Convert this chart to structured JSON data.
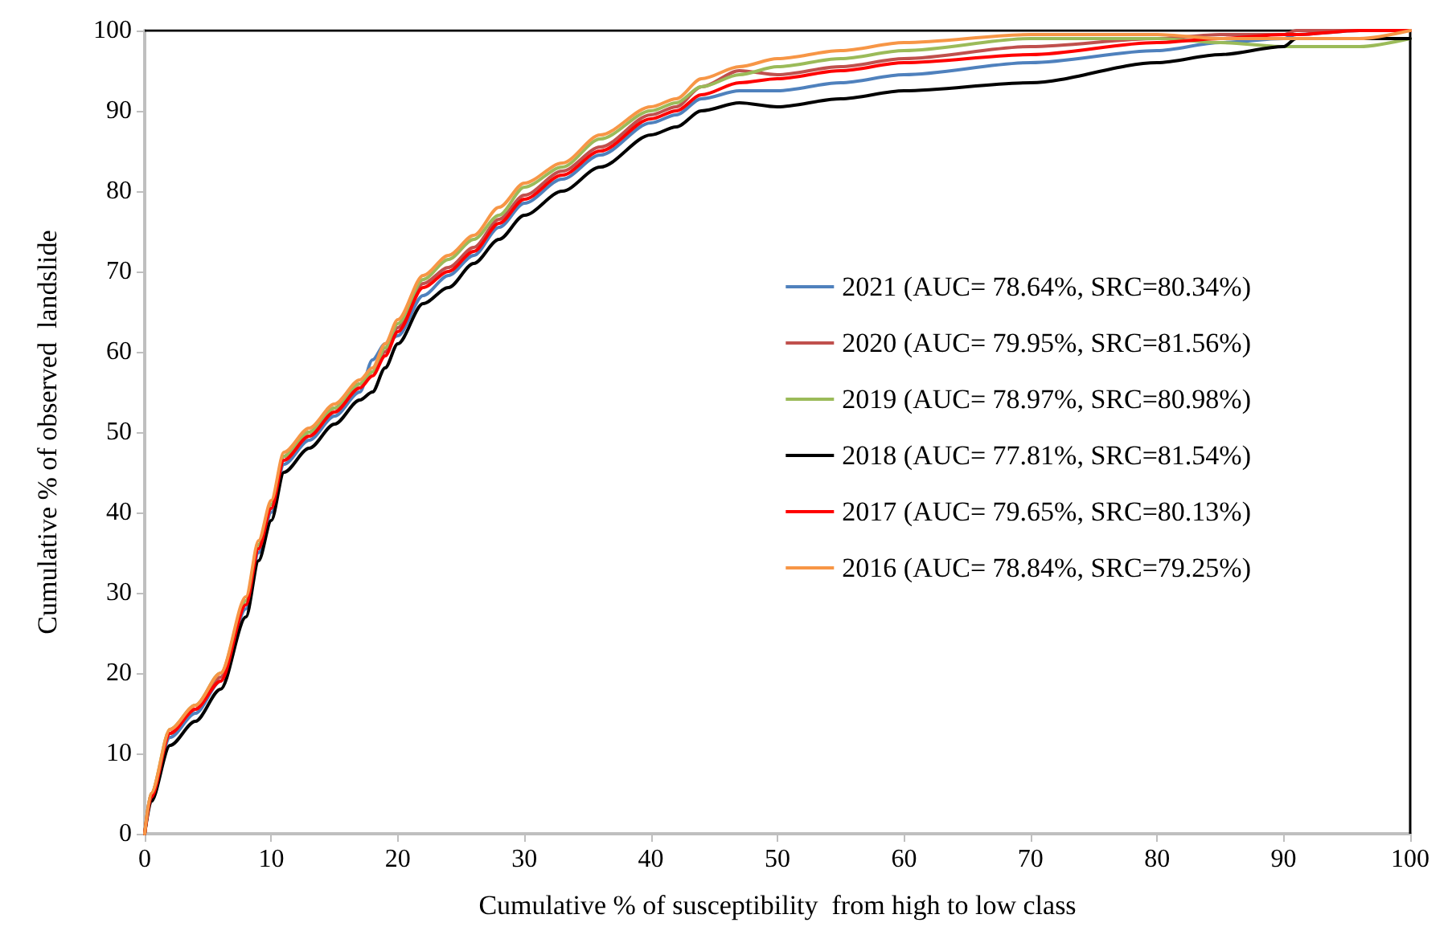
{
  "chart_data": {
    "type": "line",
    "xlabel": "Cumulative % of susceptibility  from high to low class",
    "ylabel": "Cumulative % of observed  landslide",
    "x": [
      0,
      0.5,
      2,
      4,
      6,
      8,
      9,
      10,
      11,
      13,
      15,
      17,
      18,
      19,
      20,
      22,
      24,
      26,
      28,
      30,
      33,
      36,
      40,
      42,
      44,
      47,
      50,
      55,
      60,
      70,
      80,
      85,
      90,
      91,
      96,
      100
    ],
    "series": [
      {
        "name": "2021 (AUC= 78.64%, SRC=80.34%)",
        "color": "#4f81bd",
        "values": [
          0,
          4.5,
          12,
          15,
          19,
          28,
          35,
          40,
          46,
          49,
          52,
          55,
          59,
          61,
          62,
          67,
          69.5,
          72,
          75.5,
          78.5,
          81.5,
          84.5,
          88.5,
          89.5,
          91.5,
          92.5,
          92.5,
          93.5,
          94.5,
          96,
          97.5,
          98.5,
          99,
          99.5,
          100,
          100
        ]
      },
      {
        "name": "2020 (AUC= 79.95%, SRC=81.56%)",
        "color": "#c0504d",
        "values": [
          0,
          5,
          12.5,
          15.5,
          19.5,
          29,
          36,
          41,
          47,
          50,
          53,
          56,
          57.5,
          60,
          63,
          68.5,
          70.5,
          73,
          76.5,
          79.5,
          82.5,
          85.5,
          89.5,
          90.5,
          93,
          95,
          94.5,
          95.5,
          96.5,
          98,
          99,
          99.5,
          99.5,
          100,
          100,
          100
        ]
      },
      {
        "name": "2019 (AUC= 78.97%, SRC=80.98%)",
        "color": "#9bbb59",
        "values": [
          0,
          5,
          13,
          16,
          20,
          29,
          36,
          41,
          47,
          50,
          53,
          56,
          57.5,
          60.5,
          63.5,
          69,
          71.5,
          74,
          77,
          80.5,
          83,
          86.5,
          90,
          91,
          93,
          94.5,
          95.5,
          96.5,
          97.5,
          99,
          99,
          98.5,
          98,
          98,
          98,
          99
        ]
      },
      {
        "name": "2018 (AUC= 77.81%, SRC=81.54%)",
        "color": "#000000",
        "values": [
          0,
          4,
          11,
          14,
          18,
          27,
          34,
          39,
          45,
          48,
          51,
          54,
          55,
          58,
          61,
          66,
          68,
          71,
          74,
          77,
          80,
          83,
          87,
          88,
          90,
          91,
          90.5,
          91.5,
          92.5,
          93.5,
          96,
          97,
          98,
          99,
          99,
          99
        ]
      },
      {
        "name": "2017 (AUC= 79.65%, SRC=80.13%)",
        "color": "#ff0000",
        "values": [
          0,
          4.5,
          12.5,
          15.5,
          19,
          28.5,
          35.5,
          40.5,
          46.5,
          49.5,
          52.5,
          55.5,
          57,
          59.5,
          62.5,
          68,
          70,
          72.5,
          76,
          79,
          82,
          85,
          89,
          90,
          92,
          93.5,
          94,
          95,
          96,
          97,
          98.5,
          99,
          99.5,
          99.5,
          100,
          100
        ]
      },
      {
        "name": "2016 (AUC= 78.84%, SRC=79.25%)",
        "color": "#f79646",
        "values": [
          0,
          5,
          13,
          16,
          20,
          29.5,
          36.5,
          41.5,
          47.5,
          50.5,
          53.5,
          56.5,
          58,
          61,
          64,
          69.5,
          72,
          74.5,
          78,
          81,
          83.5,
          87,
          90.5,
          91.5,
          94,
          95.5,
          96.5,
          97.5,
          98.5,
          99.5,
          99.5,
          99,
          99,
          99,
          99,
          100
        ]
      }
    ],
    "xlim": [
      0,
      100
    ],
    "xticks": [
      0,
      10,
      20,
      30,
      40,
      50,
      60,
      70,
      80,
      90,
      100
    ],
    "ylim": [
      0,
      100
    ],
    "yticks": [
      0,
      10,
      20,
      30,
      40,
      50,
      60,
      70,
      80,
      90,
      100
    ],
    "grid": false,
    "legend": "right",
    "marker": "none",
    "line_style": "solid"
  }
}
